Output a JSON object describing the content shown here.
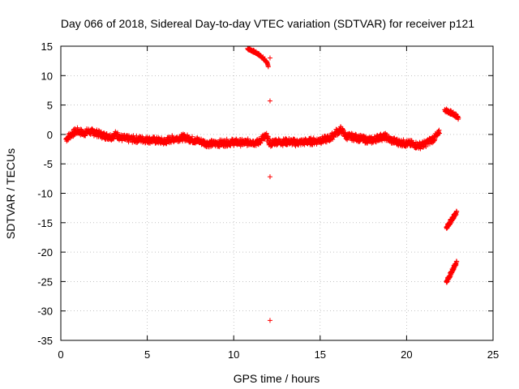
{
  "chart_data": {
    "type": "scatter",
    "title": "Day 066 of 2018, Sidereal Day-to-day VTEC variation (SDTVAR) for receiver p121",
    "xlabel": "GPS time / hours",
    "ylabel": "SDTVAR / TECUs",
    "xlim": [
      0,
      25
    ],
    "ylim": [
      -35,
      15
    ],
    "xticks": [
      0,
      5,
      10,
      15,
      20,
      25
    ],
    "yticks": [
      15,
      10,
      5,
      0,
      -5,
      -10,
      -15,
      -20,
      -25,
      -30,
      -35
    ],
    "grid": true,
    "marker": "+",
    "series_color": "#ff0000",
    "main_band": [
      [
        0.3,
        -0.8
      ],
      [
        0.5,
        -0.2
      ],
      [
        0.8,
        0.4
      ],
      [
        1.0,
        0.6
      ],
      [
        1.3,
        0.2
      ],
      [
        1.6,
        0.5
      ],
      [
        2.0,
        0.3
      ],
      [
        2.5,
        -0.2
      ],
      [
        2.9,
        -0.4
      ],
      [
        3.2,
        0.0
      ],
      [
        3.5,
        -0.6
      ],
      [
        4.0,
        -0.8
      ],
      [
        4.5,
        -0.8
      ],
      [
        5.0,
        -0.9
      ],
      [
        5.5,
        -1.0
      ],
      [
        6.0,
        -1.2
      ],
      [
        6.4,
        -0.8
      ],
      [
        6.8,
        -0.6
      ],
      [
        7.2,
        -0.5
      ],
      [
        7.6,
        -0.9
      ],
      [
        8.0,
        -1.1
      ],
      [
        8.4,
        -1.5
      ],
      [
        8.8,
        -1.6
      ],
      [
        9.2,
        -1.5
      ],
      [
        9.6,
        -1.4
      ],
      [
        10.0,
        -1.3
      ],
      [
        10.5,
        -1.4
      ],
      [
        11.0,
        -1.3
      ],
      [
        11.4,
        -1.4
      ],
      [
        11.7,
        -0.5
      ],
      [
        11.9,
        -0.4
      ],
      [
        12.1,
        -1.6
      ],
      [
        12.4,
        -1.2
      ],
      [
        12.8,
        -1.3
      ],
      [
        13.2,
        -1.2
      ],
      [
        13.6,
        -1.4
      ],
      [
        14.0,
        -1.3
      ],
      [
        14.4,
        -1.2
      ],
      [
        14.8,
        -1.1
      ],
      [
        15.2,
        -0.9
      ],
      [
        15.6,
        -0.6
      ],
      [
        15.9,
        0.3
      ],
      [
        16.2,
        0.8
      ],
      [
        16.5,
        -0.3
      ],
      [
        16.8,
        -0.4
      ],
      [
        17.2,
        -0.6
      ],
      [
        17.6,
        -0.9
      ],
      [
        18.0,
        -1.0
      ],
      [
        18.4,
        -0.5
      ],
      [
        18.8,
        -0.4
      ],
      [
        19.1,
        -1.0
      ],
      [
        19.5,
        -1.3
      ],
      [
        19.9,
        -1.5
      ],
      [
        20.3,
        -1.6
      ],
      [
        20.7,
        -1.9
      ],
      [
        21.0,
        -1.7
      ],
      [
        21.3,
        -1.2
      ],
      [
        21.6,
        -0.6
      ],
      [
        21.9,
        0.2
      ]
    ],
    "arc_top": [
      [
        10.8,
        14.6
      ],
      [
        11.1,
        14.2
      ],
      [
        11.4,
        13.7
      ],
      [
        11.7,
        13.0
      ],
      [
        11.9,
        12.3
      ],
      [
        12.0,
        11.5
      ]
    ],
    "outliers": [
      [
        12.1,
        13.0
      ],
      [
        12.1,
        5.7
      ],
      [
        12.1,
        -7.2
      ],
      [
        12.1,
        -31.6
      ]
    ],
    "tail_upper": [
      [
        22.2,
        4.2
      ],
      [
        22.5,
        3.8
      ],
      [
        22.8,
        3.3
      ],
      [
        23.0,
        2.8
      ]
    ],
    "tail_mid": [
      [
        22.3,
        -15.8
      ],
      [
        22.5,
        -15.0
      ],
      [
        22.7,
        -14.1
      ],
      [
        22.9,
        -13.1
      ]
    ],
    "tail_low": [
      [
        22.3,
        -25.0
      ],
      [
        22.5,
        -24.0
      ],
      [
        22.7,
        -22.8
      ],
      [
        22.9,
        -21.6
      ]
    ]
  }
}
